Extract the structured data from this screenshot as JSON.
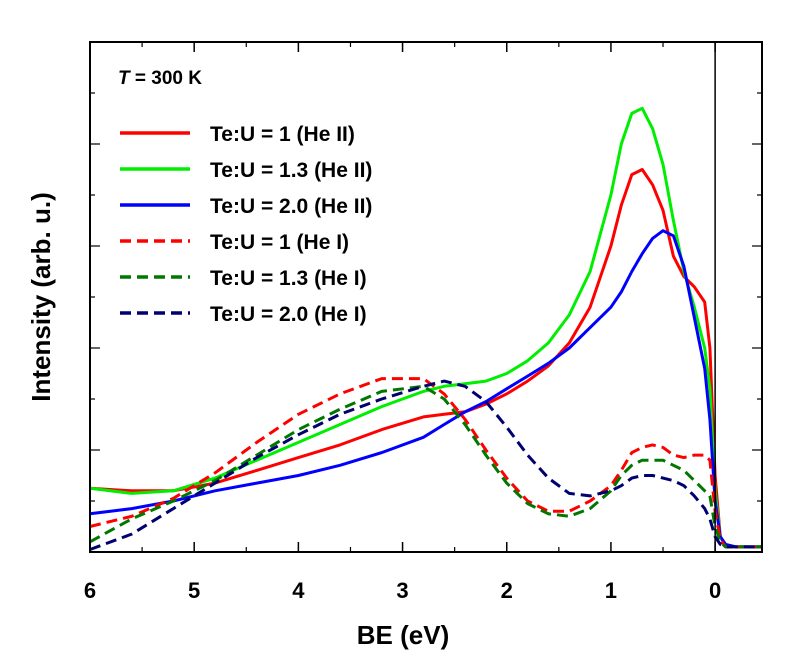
{
  "chart_data": {
    "type": "line",
    "title": "",
    "xlabel": "BE (eV)",
    "ylabel": "Intensity (arb. u.)",
    "annotation": {
      "var": "T",
      "text": " = 300 K"
    },
    "xlim": [
      6.0,
      -0.45
    ],
    "ylim": [
      0,
      100
    ],
    "x_ticks": [
      6,
      5,
      4,
      3,
      2,
      1,
      0
    ],
    "x_tick_labels": [
      "6",
      "5",
      "4",
      "3",
      "2",
      "1",
      "0"
    ],
    "y_tick_labels_shown": false,
    "reference_line_x": 0,
    "legend_position": "top-left",
    "x": [
      6.0,
      5.6,
      5.2,
      4.8,
      4.4,
      4.0,
      3.6,
      3.2,
      2.8,
      2.6,
      2.4,
      2.2,
      2.0,
      1.8,
      1.6,
      1.4,
      1.2,
      1.0,
      0.9,
      0.8,
      0.7,
      0.6,
      0.5,
      0.4,
      0.3,
      0.2,
      0.1,
      0.05,
      0.0,
      -0.05,
      -0.1,
      -0.2,
      -0.45
    ],
    "series": [
      {
        "name": "Te:U = 1 (He II)",
        "color": "#ff0000",
        "dash": "solid",
        "values": [
          12.5,
          12.0,
          12.0,
          13.5,
          16.0,
          18.5,
          21.0,
          24.0,
          26.5,
          27.0,
          27.5,
          29.0,
          31.0,
          33.5,
          36.5,
          41.0,
          48.0,
          60.0,
          68.0,
          74.0,
          75.0,
          72.0,
          67.0,
          58.0,
          54.0,
          52.0,
          49.0,
          40.0,
          15.0,
          3.0,
          1.5,
          1.0,
          1.0
        ]
      },
      {
        "name": "Te:U = 1.3 (He II)",
        "color": "#00ee00",
        "dash": "solid",
        "values": [
          12.5,
          11.5,
          12.0,
          14.5,
          18.0,
          21.5,
          25.0,
          28.5,
          31.5,
          32.5,
          33.0,
          33.5,
          35.0,
          37.5,
          41.0,
          46.5,
          55.0,
          70.0,
          80.0,
          86.0,
          87.0,
          83.0,
          76.0,
          65.0,
          55.0,
          48.0,
          40.0,
          32.0,
          12.0,
          3.0,
          1.5,
          1.0,
          1.0
        ]
      },
      {
        "name": "Te:U = 2.0 (He II)",
        "color": "#0000ff",
        "dash": "solid",
        "values": [
          7.5,
          8.5,
          10.0,
          12.0,
          13.5,
          15.0,
          17.0,
          19.5,
          22.5,
          25.0,
          27.5,
          29.5,
          32.0,
          34.5,
          37.0,
          40.0,
          44.0,
          48.0,
          51.0,
          55.0,
          58.5,
          61.5,
          63.0,
          62.0,
          56.0,
          46.0,
          36.0,
          26.0,
          10.0,
          3.0,
          1.5,
          1.0,
          1.0
        ]
      },
      {
        "name": "Te:U = 1 (He I)",
        "color": "#ff0000",
        "dash": "dashed",
        "values": [
          5.0,
          7.0,
          10.5,
          15.5,
          21.5,
          27.0,
          31.0,
          34.0,
          34.0,
          31.0,
          26.0,
          20.0,
          14.5,
          10.0,
          8.0,
          8.0,
          10.0,
          13.0,
          16.0,
          19.5,
          20.5,
          21.0,
          20.5,
          19.0,
          18.5,
          19.0,
          19.0,
          18.0,
          8.0,
          2.5,
          1.0,
          1.0,
          1.0
        ]
      },
      {
        "name": "Te:U = 1.3 (He I)",
        "color": "#007800",
        "dash": "dashed",
        "values": [
          2.0,
          6.5,
          10.0,
          14.0,
          19.0,
          24.0,
          28.0,
          31.5,
          32.5,
          30.0,
          25.0,
          19.0,
          13.5,
          9.5,
          7.5,
          7.0,
          8.5,
          12.0,
          15.0,
          17.0,
          18.0,
          18.0,
          18.0,
          17.0,
          16.0,
          14.0,
          12.0,
          11.0,
          5.0,
          2.0,
          1.0,
          1.0,
          1.0
        ]
      },
      {
        "name": "Te:U = 2.0 (He I)",
        "color": "#00006e",
        "dash": "dashed",
        "values": [
          0.5,
          3.5,
          8.5,
          13.5,
          18.5,
          23.0,
          27.0,
          30.0,
          32.5,
          33.5,
          32.5,
          29.5,
          24.5,
          19.0,
          14.5,
          11.5,
          11.0,
          12.0,
          13.0,
          14.5,
          15.0,
          15.0,
          14.5,
          14.0,
          13.0,
          11.0,
          8.5,
          6.5,
          3.0,
          1.5,
          1.0,
          1.0,
          1.0
        ]
      }
    ]
  }
}
